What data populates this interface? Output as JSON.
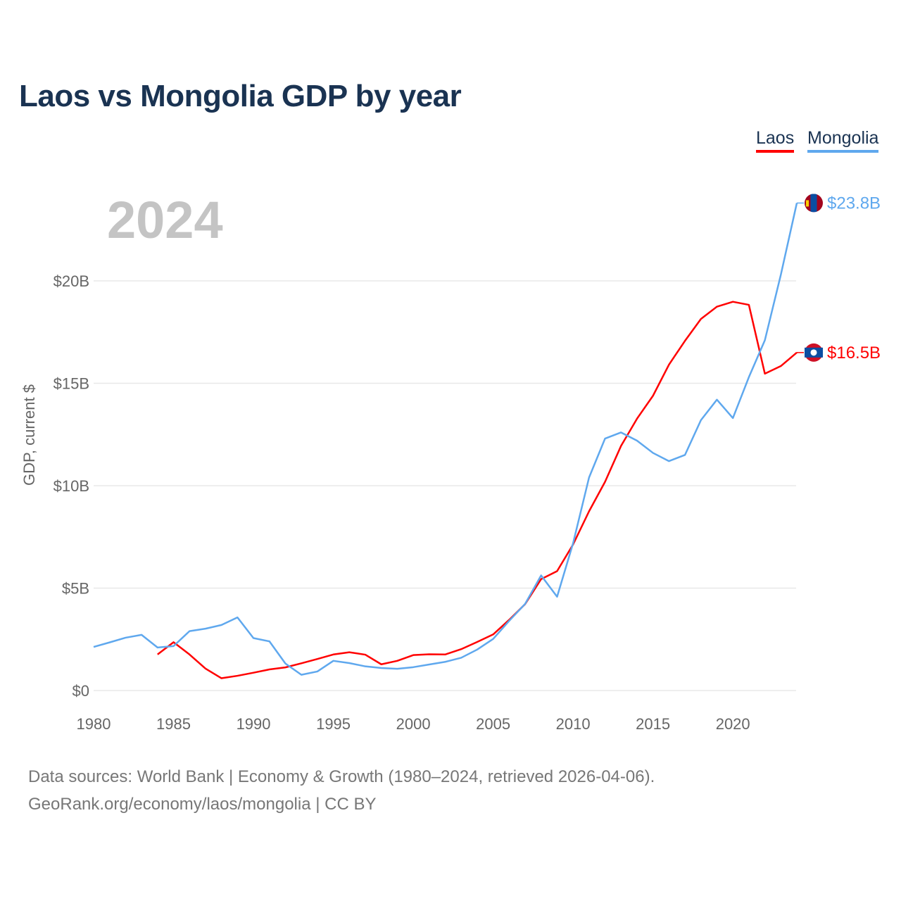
{
  "chart_data": {
    "type": "line",
    "title": "Laos vs Mongolia GDP by year",
    "year_overlay": "2024",
    "xlabel": "",
    "ylabel": "GDP, current $",
    "xlim": [
      1980,
      2024
    ],
    "ylim": [
      0,
      24
    ],
    "x_ticks": [
      "1980",
      "1985",
      "1990",
      "1995",
      "2000",
      "2005",
      "2010",
      "2015",
      "2020"
    ],
    "y_ticks": [
      {
        "value": 0,
        "label": "$0"
      },
      {
        "value": 5,
        "label": "$5B"
      },
      {
        "value": 10,
        "label": "$10B"
      },
      {
        "value": 15,
        "label": "$15B"
      },
      {
        "value": 20,
        "label": "$20B"
      }
    ],
    "grid": true,
    "legend_position": "top-right",
    "series": [
      {
        "name": "Laos",
        "color": "#ff0000",
        "end_label": "$16.5B",
        "flag": "laos-flag",
        "x": [
          1984,
          1985,
          1986,
          1987,
          1988,
          1989,
          1990,
          1991,
          1992,
          1993,
          1994,
          1995,
          1996,
          1997,
          1998,
          1999,
          2000,
          2001,
          2002,
          2003,
          2004,
          2005,
          2006,
          2007,
          2008,
          2009,
          2010,
          2011,
          2012,
          2013,
          2014,
          2015,
          2016,
          2017,
          2018,
          2019,
          2020,
          2021,
          2022,
          2023,
          2024
        ],
        "values": [
          1.76,
          2.36,
          1.76,
          1.07,
          0.6,
          0.72,
          0.87,
          1.03,
          1.13,
          1.33,
          1.54,
          1.76,
          1.87,
          1.75,
          1.28,
          1.45,
          1.73,
          1.77,
          1.76,
          2.02,
          2.37,
          2.74,
          3.45,
          4.22,
          5.44,
          5.83,
          7.13,
          8.75,
          10.19,
          11.94,
          13.27,
          14.39,
          15.91,
          17.07,
          18.14,
          18.74,
          18.98,
          18.83,
          15.47,
          15.84,
          16.5
        ]
      },
      {
        "name": "Mongolia",
        "color": "#5fa8ee",
        "end_label": "$23.8B",
        "flag": "mongolia-flag",
        "x": [
          1980,
          1981,
          1982,
          1983,
          1984,
          1985,
          1986,
          1987,
          1988,
          1989,
          1990,
          1991,
          1992,
          1993,
          1994,
          1995,
          1996,
          1997,
          1998,
          1999,
          2000,
          2001,
          2002,
          2003,
          2004,
          2005,
          2006,
          2007,
          2008,
          2009,
          2010,
          2011,
          2012,
          2013,
          2014,
          2015,
          2016,
          2017,
          2018,
          2019,
          2020,
          2021,
          2022,
          2023,
          2024
        ],
        "values": [
          2.13,
          2.35,
          2.58,
          2.72,
          2.1,
          2.17,
          2.9,
          3.02,
          3.2,
          3.57,
          2.56,
          2.4,
          1.32,
          0.77,
          0.93,
          1.45,
          1.34,
          1.18,
          1.1,
          1.06,
          1.14,
          1.27,
          1.4,
          1.6,
          2.0,
          2.52,
          3.4,
          4.23,
          5.62,
          4.58,
          7.19,
          10.4,
          12.3,
          12.6,
          12.2,
          11.6,
          11.2,
          11.5,
          13.2,
          14.2,
          13.3,
          15.3,
          17.1,
          20.3,
          23.8
        ]
      }
    ]
  },
  "footer": {
    "line1": "Data sources: World Bank | Economy & Growth (1980–2024, retrieved 2026-04-06).",
    "line2": "GeoRank.org/economy/laos/mongolia | CC BY"
  }
}
